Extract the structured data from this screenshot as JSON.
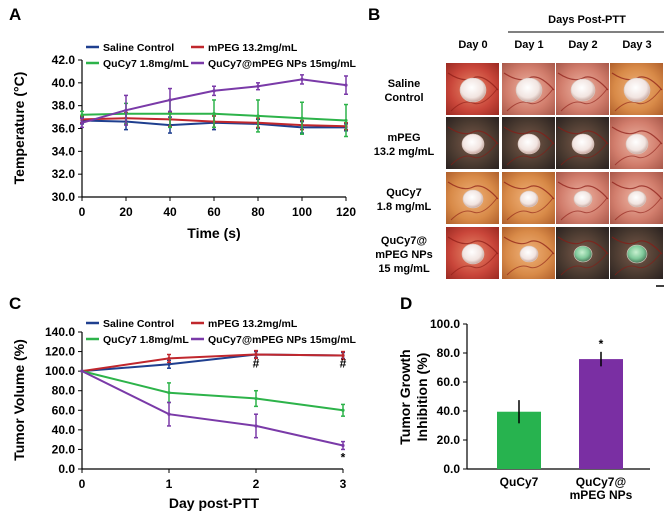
{
  "panels": {
    "a": "A",
    "b": "B",
    "c": "C",
    "d": "D"
  },
  "chart_data": [
    {
      "id": "A",
      "type": "line",
      "xlabel": "Time (s)",
      "ylabel": "Temperature (°C)",
      "x": [
        0,
        20,
        40,
        60,
        80,
        100,
        120
      ],
      "xticks": [
        "0",
        "20",
        "40",
        "60",
        "80",
        "100",
        "120"
      ],
      "xlim": [
        0,
        120
      ],
      "ylim": [
        30,
        42
      ],
      "yticks": [
        "30.0",
        "32.0",
        "34.0",
        "36.0",
        "38.0",
        "40.0",
        "42.0"
      ],
      "series": [
        {
          "name": "Saline Control",
          "color": "#1f3f8f",
          "values": [
            36.7,
            36.6,
            36.3,
            36.5,
            36.4,
            36.1,
            36.1
          ],
          "errors": [
            0.3,
            0.7,
            0.7,
            0.6,
            0.4,
            0.5,
            0.3
          ]
        },
        {
          "name": "mPEG 13.2mg/mL",
          "color": "#c0272d",
          "values": [
            36.8,
            36.9,
            36.8,
            36.6,
            36.5,
            36.3,
            36.2
          ],
          "errors": [
            0.3,
            0.5,
            0.6,
            0.5,
            0.4,
            0.4,
            0.3
          ]
        },
        {
          "name": "QuCy7 1.8mg/mL",
          "color": "#2db34a",
          "values": [
            37.2,
            37.3,
            37.3,
            37.3,
            37.1,
            36.9,
            36.7
          ],
          "errors": [
            0.3,
            0.9,
            1.2,
            1.2,
            1.4,
            1.4,
            1.4
          ]
        },
        {
          "name": "QuCy7@mPEG NPs 15mg/mL",
          "color": "#7a3aa8",
          "values": [
            36.5,
            37.6,
            38.5,
            39.3,
            39.7,
            40.3,
            39.8
          ],
          "errors": [
            0.4,
            1.3,
            1.0,
            0.4,
            0.3,
            0.4,
            0.8
          ]
        }
      ]
    },
    {
      "id": "C",
      "type": "line",
      "xlabel": "Day post-PTT",
      "ylabel": "Tumor Volume (%)",
      "x": [
        0,
        1,
        2,
        3
      ],
      "xticks": [
        "0",
        "1",
        "2",
        "3"
      ],
      "xlim": [
        0,
        3
      ],
      "ylim": [
        0,
        140
      ],
      "yticks": [
        "0.0",
        "20.0",
        "40.0",
        "60.0",
        "80.0",
        "100.0",
        "120.0",
        "140.0"
      ],
      "series": [
        {
          "name": "Saline Control",
          "color": "#1f3f8f",
          "values": [
            100,
            107,
            117,
            116
          ],
          "errors": [
            0,
            4,
            3,
            3
          ]
        },
        {
          "name": "mPEG 13.2mg/mL",
          "color": "#c0272d",
          "values": [
            100,
            113,
            117,
            116
          ],
          "errors": [
            0,
            4,
            4,
            4
          ]
        },
        {
          "name": "QuCy7 1.8mg/mL",
          "color": "#2db34a",
          "values": [
            100,
            78,
            72,
            60
          ],
          "errors": [
            0,
            10,
            8,
            6
          ]
        },
        {
          "name": "QuCy7@mPEG NPs 15mg/mL",
          "color": "#7a3aa8",
          "values": [
            100,
            56,
            44,
            24
          ],
          "errors": [
            0,
            12,
            12,
            4
          ]
        }
      ],
      "annotations": [
        {
          "text": "#",
          "x": 2,
          "y": 108
        },
        {
          "text": "#",
          "x": 3,
          "y": 108
        },
        {
          "text": "*",
          "x": 3,
          "y": 12
        }
      ]
    },
    {
      "id": "D",
      "type": "bar",
      "ylabel": "Tumor Growth Inhibition (%)",
      "ylabel_lines": [
        "Tumor Growth",
        "Inhibition (%)"
      ],
      "categories": [
        "QuCy7",
        "QuCy7@ mPEG NPs"
      ],
      "category_lines": [
        [
          "QuCy7"
        ],
        [
          "QuCy7@",
          "mPEG NPs"
        ]
      ],
      "values": [
        39.5,
        75.8
      ],
      "errors": [
        8,
        5
      ],
      "colors": [
        "#27b34f",
        "#7a2fa3"
      ],
      "ylim": [
        0,
        100
      ],
      "yticks": [
        "0.0",
        "20.0",
        "40.0",
        "60.0",
        "80.0",
        "100.0"
      ],
      "annotations": [
        {
          "text": "*",
          "bar": 1
        }
      ]
    }
  ],
  "photos": {
    "header": "Days Post-PTT",
    "columns": [
      "Day 0",
      "Day 1",
      "Day 2",
      "Day 3"
    ],
    "rows": [
      [
        "Saline",
        "Control"
      ],
      [
        "mPEG",
        "13.2 mg/mL"
      ],
      [
        "QuCy7",
        "1.8 mg/mL"
      ],
      [
        "QuCy7@",
        "mPEG NPs",
        "15 mg/mL"
      ]
    ]
  }
}
